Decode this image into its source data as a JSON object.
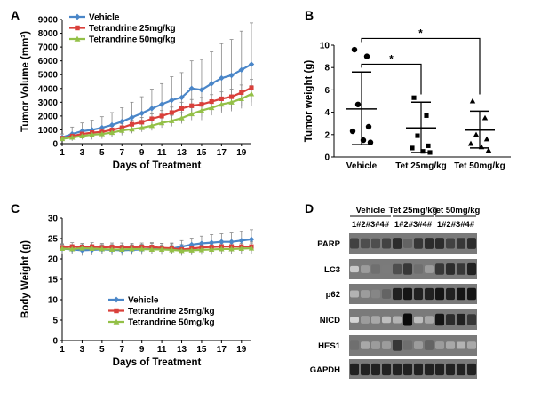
{
  "colors": {
    "vehicle": "#4A86C8",
    "tet25": "#D9403B",
    "tet50": "#93C047",
    "axis": "#000000",
    "errorbar": "#888888"
  },
  "panels": {
    "a": "A",
    "b": "B",
    "c": "C",
    "d": "D"
  },
  "chart_data": [
    {
      "id": "A",
      "type": "line",
      "xlabel": "Days of Treatment",
      "ylabel": "Tumor Volume (mm³)",
      "ylim": [
        0,
        9000
      ],
      "yticks": [
        0,
        1000,
        2000,
        3000,
        4000,
        5000,
        6000,
        7000,
        8000,
        9000
      ],
      "xlim": [
        1,
        20
      ],
      "xticks": [
        1,
        3,
        5,
        7,
        9,
        11,
        13,
        15,
        17,
        19
      ],
      "legend_position": "top-left",
      "x": [
        1,
        2,
        3,
        4,
        5,
        6,
        7,
        8,
        9,
        10,
        11,
        12,
        13,
        14,
        15,
        16,
        17,
        18,
        19,
        20
      ],
      "series": [
        {
          "name": "Vehicle",
          "color": "#4A86C8",
          "marker": "diamond",
          "values": [
            450,
            700,
            900,
            1000,
            1150,
            1350,
            1600,
            1900,
            2200,
            2550,
            2850,
            3150,
            3350,
            4000,
            3900,
            4350,
            4750,
            4950,
            5350,
            5750
          ],
          "err": [
            250,
            500,
            600,
            700,
            800,
            900,
            1000,
            1100,
            1200,
            1400,
            1500,
            1700,
            1800,
            2000,
            2200,
            2300,
            2500,
            2600,
            2800,
            3000
          ]
        },
        {
          "name": "Tetrandrine 25mg/kg",
          "color": "#D9403B",
          "marker": "square",
          "values": [
            400,
            550,
            700,
            800,
            850,
            1000,
            1150,
            1400,
            1550,
            1800,
            2000,
            2250,
            2550,
            2750,
            2850,
            3050,
            3250,
            3400,
            3700,
            4050
          ],
          "err": [
            100,
            150,
            200,
            200,
            250,
            250,
            300,
            300,
            350,
            350,
            400,
            400,
            450,
            450,
            500,
            500,
            500,
            550,
            550,
            600
          ]
        },
        {
          "name": "Tetrandrine 50mg/kg",
          "color": "#93C047",
          "marker": "triangle",
          "values": [
            350,
            450,
            550,
            650,
            700,
            800,
            950,
            1050,
            1150,
            1300,
            1500,
            1650,
            1850,
            2150,
            2400,
            2600,
            2850,
            3000,
            3250,
            3600
          ],
          "err": [
            100,
            150,
            150,
            200,
            200,
            250,
            250,
            300,
            300,
            350,
            350,
            400,
            400,
            450,
            450,
            500,
            500,
            500,
            550,
            600
          ]
        }
      ]
    },
    {
      "id": "B",
      "type": "scatter",
      "ylabel": "Tumor weight (g)",
      "ylim": [
        0,
        10
      ],
      "yticks": [
        0,
        2,
        4,
        6,
        8,
        10
      ],
      "categories": [
        "Vehicle",
        "Tet 25mg/kg",
        "Tet 50mg/kg"
      ],
      "groups": [
        {
          "category": "Vehicle",
          "marker": "circle",
          "mean": 4.3,
          "sd_upper": 7.6,
          "sd_lower": 1.1,
          "points": [
            9.6,
            9.0,
            4.7,
            2.7,
            2.3,
            1.5,
            1.3
          ]
        },
        {
          "category": "Tet 25mg/kg",
          "marker": "square",
          "mean": 2.6,
          "sd_upper": 4.9,
          "sd_lower": 0.4,
          "points": [
            5.3,
            3.7,
            1.9,
            1.0,
            0.8,
            0.5,
            0.4
          ]
        },
        {
          "category": "Tet 50mg/kg",
          "marker": "triangle",
          "mean": 2.4,
          "sd_upper": 4.1,
          "sd_lower": 0.8,
          "points": [
            5.0,
            3.5,
            2.0,
            1.6,
            1.2,
            0.9,
            0.6
          ]
        }
      ],
      "significance": [
        {
          "from": "Vehicle",
          "to": "Tet 25mg/kg",
          "label": "*"
        },
        {
          "from": "Vehicle",
          "to": "Tet 50mg/kg",
          "label": "*"
        }
      ]
    },
    {
      "id": "C",
      "type": "line",
      "xlabel": "Days of Treatment",
      "ylabel": "Body Weight (g)",
      "ylim": [
        0,
        30
      ],
      "yticks": [
        0,
        5,
        10,
        15,
        20,
        25,
        30
      ],
      "xlim": [
        1,
        20
      ],
      "xticks": [
        1,
        3,
        5,
        7,
        9,
        11,
        13,
        15,
        17,
        19
      ],
      "legend_position": "bottom-center",
      "x": [
        1,
        2,
        3,
        4,
        5,
        6,
        7,
        8,
        9,
        10,
        11,
        12,
        13,
        14,
        15,
        16,
        17,
        18,
        19,
        20
      ],
      "series": [
        {
          "name": "Vehicle",
          "color": "#4A86C8",
          "marker": "diamond",
          "values": [
            22.5,
            22.3,
            22.1,
            22.2,
            22.3,
            22.2,
            22.1,
            22.2,
            22.3,
            22.5,
            22.4,
            22.5,
            23.0,
            23.5,
            23.8,
            24.0,
            24.2,
            24.2,
            24.5,
            24.8
          ],
          "err": [
            1.2,
            1.2,
            1.3,
            1.3,
            1.2,
            1.3,
            1.3,
            1.2,
            1.3,
            1.3,
            1.4,
            1.4,
            1.5,
            1.6,
            1.8,
            2.0,
            2.0,
            2.2,
            2.2,
            2.4
          ]
        },
        {
          "name": "Tetrandrine 25mg/kg",
          "color": "#D9403B",
          "marker": "square",
          "values": [
            22.8,
            23.0,
            22.9,
            23.0,
            22.8,
            22.9,
            22.8,
            22.8,
            22.9,
            22.9,
            22.7,
            22.6,
            22.3,
            22.5,
            22.8,
            22.9,
            23.0,
            23.0,
            23.0,
            23.0
          ],
          "err": [
            0.9,
            1.0,
            0.9,
            1.0,
            1.0,
            1.0,
            1.1,
            1.0,
            1.0,
            1.1,
            1.1,
            1.1,
            1.2,
            1.2,
            1.2,
            1.2,
            1.2,
            1.2,
            1.2,
            1.2
          ]
        },
        {
          "name": "Tetrandrine 50mg/kg",
          "color": "#93C047",
          "marker": "triangle",
          "values": [
            22.5,
            22.4,
            22.6,
            22.5,
            22.4,
            22.3,
            22.3,
            22.4,
            22.4,
            22.3,
            22.3,
            22.2,
            22.0,
            22.1,
            22.2,
            22.3,
            22.4,
            22.4,
            22.5,
            22.6
          ],
          "err": [
            1.0,
            1.0,
            1.1,
            1.0,
            1.1,
            1.0,
            1.0,
            1.1,
            1.0,
            1.1,
            1.1,
            1.1,
            1.2,
            1.2,
            1.2,
            1.3,
            1.3,
            1.3,
            1.3,
            1.3
          ]
        }
      ]
    }
  ],
  "blot": {
    "groups": [
      "Vehicle",
      "Tet 25mg/kg",
      "Tet 50mg/kg"
    ],
    "lane_labels": [
      "1#2#3#4#",
      "1#2#3#4#",
      "1#2#3#4#"
    ],
    "rows": [
      {
        "label": "PARP",
        "intensity": [
          0.75,
          0.7,
          0.7,
          0.75,
          0.85,
          0.6,
          0.8,
          0.85,
          0.85,
          0.75,
          0.8,
          0.85
        ]
      },
      {
        "label": "LC3",
        "intensity": [
          0.15,
          0.35,
          0.55,
          0.5,
          0.7,
          0.8,
          0.55,
          0.35,
          0.8,
          0.85,
          0.8,
          0.9
        ]
      },
      {
        "label": "p62",
        "intensity": [
          0.25,
          0.35,
          0.45,
          0.6,
          0.9,
          0.95,
          0.9,
          0.9,
          0.95,
          0.9,
          0.95,
          0.95
        ]
      },
      {
        "label": "NICD",
        "intensity": [
          0.1,
          0.35,
          0.3,
          0.2,
          0.25,
          1.0,
          0.2,
          0.3,
          0.95,
          0.85,
          0.9,
          0.8
        ]
      },
      {
        "label": "HES1",
        "intensity": [
          0.55,
          0.3,
          0.35,
          0.35,
          0.8,
          0.55,
          0.35,
          0.6,
          0.35,
          0.3,
          0.25,
          0.3
        ]
      },
      {
        "label": "GAPDH",
        "intensity": [
          0.9,
          0.9,
          0.9,
          0.9,
          0.9,
          0.9,
          0.9,
          0.9,
          0.9,
          0.9,
          0.9,
          0.9
        ]
      }
    ]
  }
}
